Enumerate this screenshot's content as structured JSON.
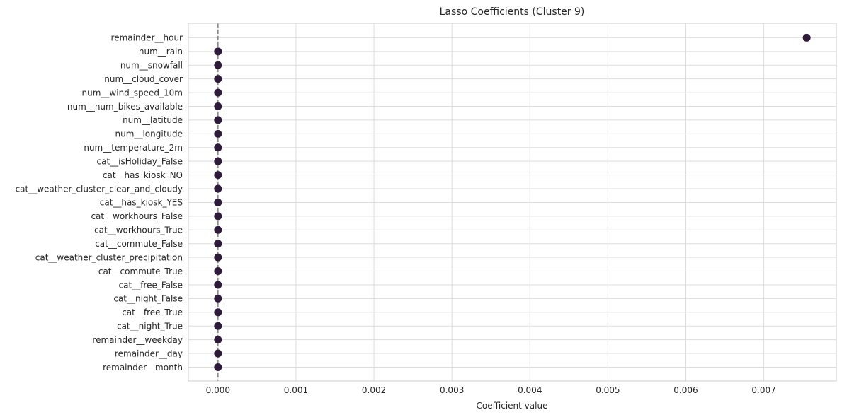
{
  "chart_data": {
    "type": "scatter",
    "title": "Lasso Coefficients (Cluster 9)",
    "xlabel": "Coefficient value",
    "ylabel": "",
    "xlim": [
      -0.00038,
      0.00793
    ],
    "xticks": [
      0.0,
      0.001,
      0.002,
      0.003,
      0.004,
      0.005,
      0.006,
      0.007
    ],
    "xtick_labels": [
      "0.000",
      "0.001",
      "0.002",
      "0.003",
      "0.004",
      "0.005",
      "0.006",
      "0.007"
    ],
    "reference_line": {
      "x": 0,
      "style": "dashed",
      "color": "#808080"
    },
    "grid": true,
    "point_color": "#2e1a3b",
    "categories": [
      "remainder__hour",
      "num__rain",
      "num__snowfall",
      "num__cloud_cover",
      "num__wind_speed_10m",
      "num__num_bikes_available",
      "num__latitude",
      "num__longitude",
      "num__temperature_2m",
      "cat__isHoliday_False",
      "cat__has_kiosk_NO",
      "cat__weather_cluster_clear_and_cloudy",
      "cat__has_kiosk_YES",
      "cat__workhours_False",
      "cat__workhours_True",
      "cat__commute_False",
      "cat__weather_cluster_precipitation",
      "cat__commute_True",
      "cat__free_False",
      "cat__night_False",
      "cat__free_True",
      "cat__night_True",
      "remainder__weekday",
      "remainder__day",
      "remainder__month"
    ],
    "values": [
      0.00755,
      0,
      0,
      0,
      0,
      0,
      0,
      0,
      0,
      0,
      0,
      0,
      0,
      0,
      0,
      0,
      0,
      0,
      0,
      0,
      0,
      0,
      0,
      0,
      0
    ]
  }
}
